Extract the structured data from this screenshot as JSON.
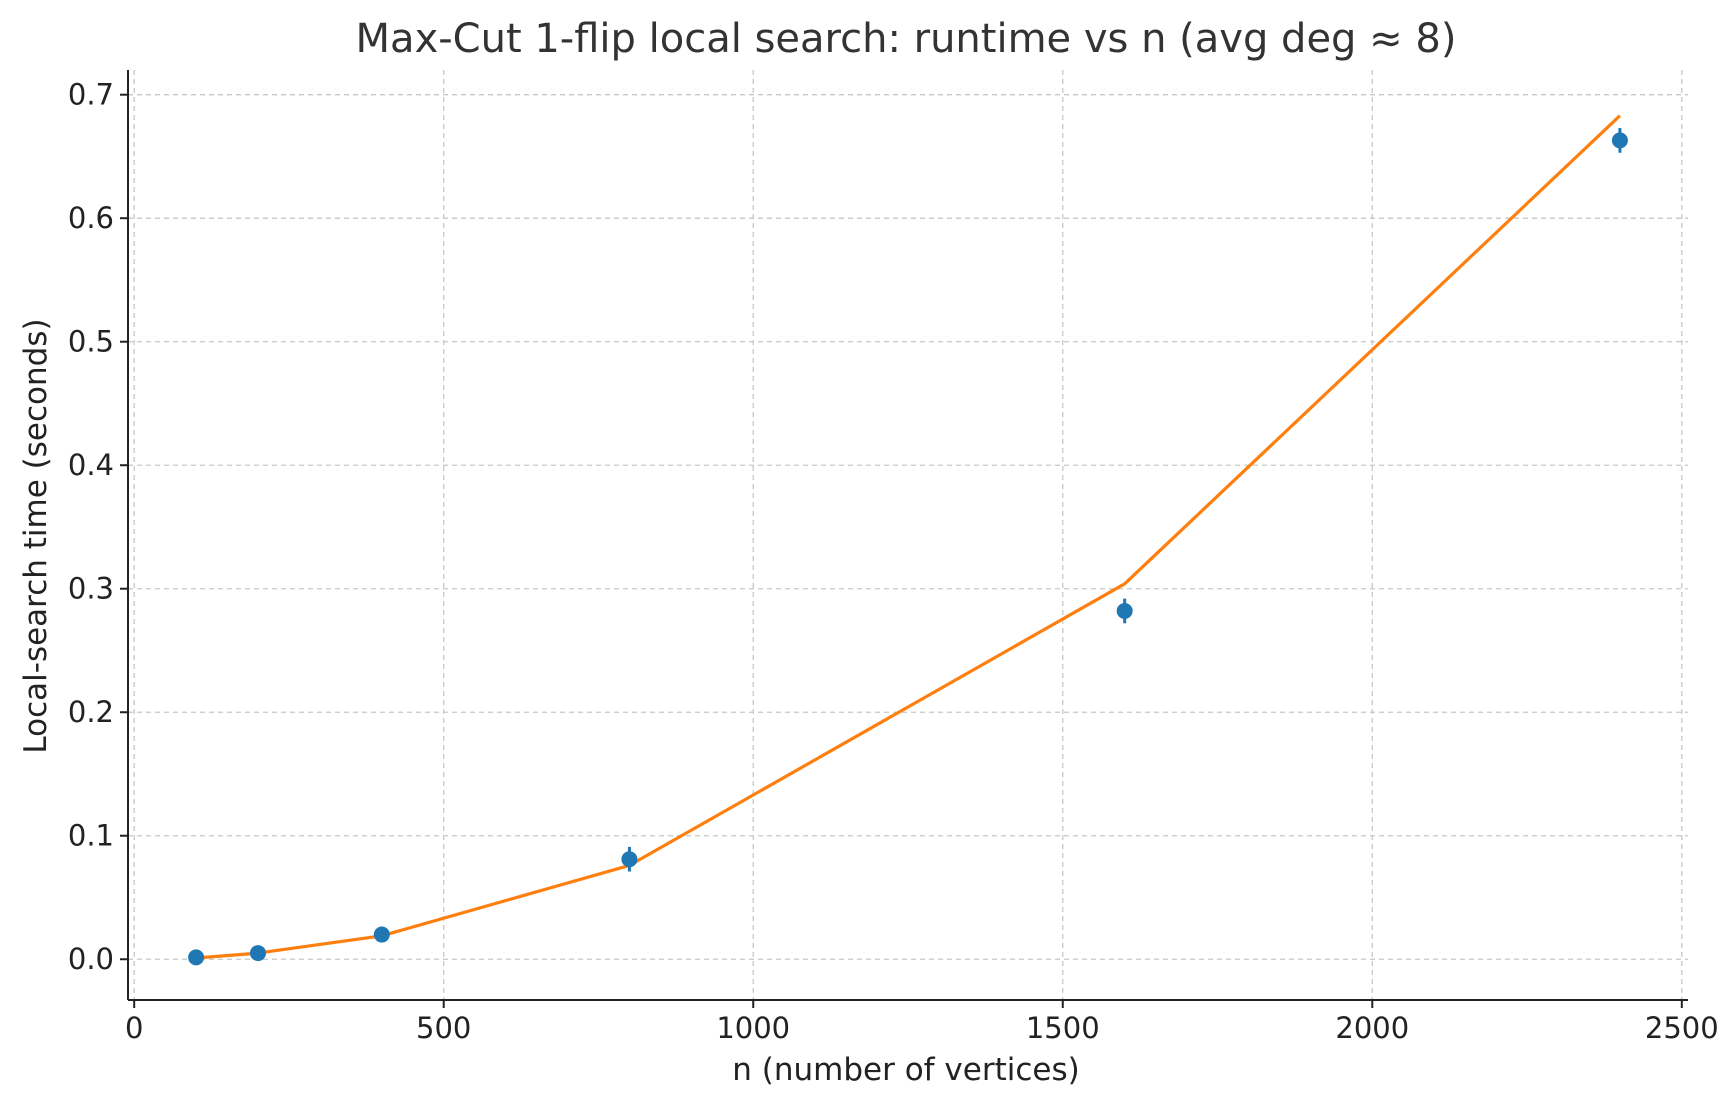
{
  "chart_data": {
    "type": "scatter",
    "title": "Max-Cut 1-flip local search: runtime vs n (avg deg ≈ 8)",
    "xlabel": "n (number of vertices)",
    "ylabel": "Local-search time (seconds)",
    "xlim": [
      -10,
      2510
    ],
    "ylim": [
      -0.033,
      0.72
    ],
    "xticks": [
      0,
      500,
      1000,
      1500,
      2000,
      2500
    ],
    "yticks": [
      0.0,
      0.1,
      0.2,
      0.3,
      0.4,
      0.5,
      0.6,
      0.7
    ],
    "xtick_labels": [
      "0",
      "500",
      "1000",
      "1500",
      "2000",
      "2500"
    ],
    "ytick_labels": [
      "0.0",
      "0.1",
      "0.2",
      "0.3",
      "0.4",
      "0.5",
      "0.6",
      "0.7"
    ],
    "grid": true,
    "series": [
      {
        "kind": "errorbar",
        "color": "#1f77b4",
        "x": [
          100,
          200,
          400,
          800,
          1600,
          2400
        ],
        "y": [
          0.0015,
          0.005,
          0.02,
          0.081,
          0.282,
          0.663
        ],
        "yerr": [
          0.001,
          0.001,
          0.002,
          0.01,
          0.01,
          0.01
        ]
      },
      {
        "kind": "line",
        "color": "#ff7f0e",
        "x": [
          100,
          200,
          400,
          800,
          1600,
          2400
        ],
        "y": [
          0.001,
          0.005,
          0.019,
          0.076,
          0.304,
          0.683
        ]
      }
    ]
  }
}
